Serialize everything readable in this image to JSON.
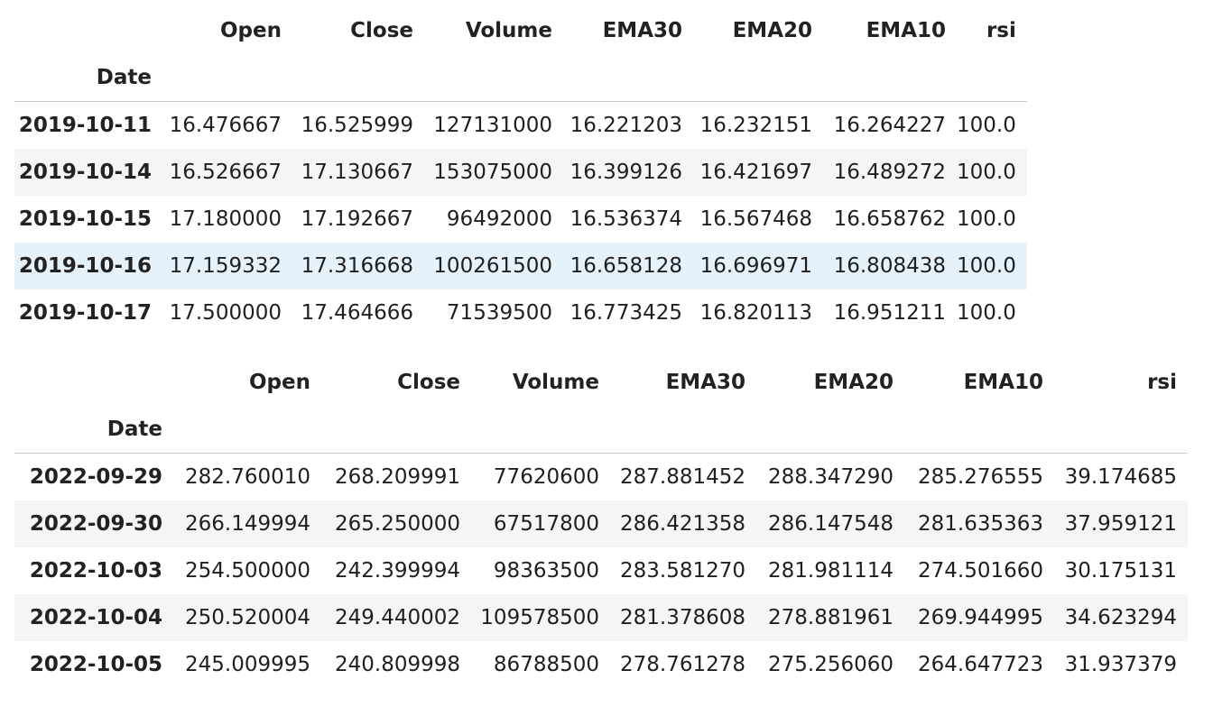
{
  "tables": [
    {
      "columns": [
        "Open",
        "Close",
        "Volume",
        "EMA30",
        "EMA20",
        "EMA10",
        "rsi"
      ],
      "index_name": "Date",
      "hovered_row": 3,
      "rows": [
        {
          "index": "2019-10-11",
          "values": [
            "16.476667",
            "16.525999",
            "127131000",
            "16.221203",
            "16.232151",
            "16.264227",
            "100.0"
          ]
        },
        {
          "index": "2019-10-14",
          "values": [
            "16.526667",
            "17.130667",
            "153075000",
            "16.399126",
            "16.421697",
            "16.489272",
            "100.0"
          ]
        },
        {
          "index": "2019-10-15",
          "values": [
            "17.180000",
            "17.192667",
            "96492000",
            "16.536374",
            "16.567468",
            "16.658762",
            "100.0"
          ]
        },
        {
          "index": "2019-10-16",
          "values": [
            "17.159332",
            "17.316668",
            "100261500",
            "16.658128",
            "16.696971",
            "16.808438",
            "100.0"
          ]
        },
        {
          "index": "2019-10-17",
          "values": [
            "17.500000",
            "17.464666",
            "71539500",
            "16.773425",
            "16.820113",
            "16.951211",
            "100.0"
          ]
        }
      ]
    },
    {
      "columns": [
        "Open",
        "Close",
        "Volume",
        "EMA30",
        "EMA20",
        "EMA10",
        "rsi"
      ],
      "index_name": "Date",
      "hovered_row": -1,
      "rows": [
        {
          "index": "2022-09-29",
          "values": [
            "282.760010",
            "268.209991",
            "77620600",
            "287.881452",
            "288.347290",
            "285.276555",
            "39.174685"
          ]
        },
        {
          "index": "2022-09-30",
          "values": [
            "266.149994",
            "265.250000",
            "67517800",
            "286.421358",
            "286.147548",
            "281.635363",
            "37.959121"
          ]
        },
        {
          "index": "2022-10-03",
          "values": [
            "254.500000",
            "242.399994",
            "98363500",
            "283.581270",
            "281.981114",
            "274.501660",
            "30.175131"
          ]
        },
        {
          "index": "2022-10-04",
          "values": [
            "250.520004",
            "249.440002",
            "109578500",
            "281.378608",
            "278.881961",
            "269.944995",
            "34.623294"
          ]
        },
        {
          "index": "2022-10-05",
          "values": [
            "245.009995",
            "240.809998",
            "86788500",
            "278.761278",
            "275.256060",
            "264.647723",
            "31.937379"
          ]
        }
      ]
    }
  ],
  "colors": {
    "stripe": "#f5f5f5",
    "hover": "#e6f2fb",
    "header_rule": "#c8c8c8"
  }
}
